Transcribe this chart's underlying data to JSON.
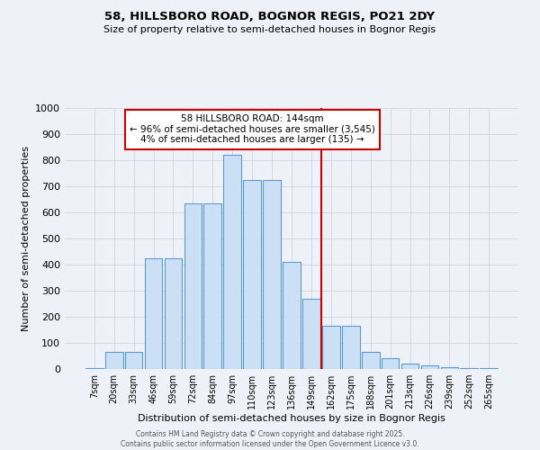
{
  "title1": "58, HILLSBORO ROAD, BOGNOR REGIS, PO21 2DY",
  "title2": "Size of property relative to semi-detached houses in Bognor Regis",
  "xlabel": "Distribution of semi-detached houses by size in Bognor Regis",
  "ylabel": "Number of semi-detached properties",
  "footer": "Contains HM Land Registry data © Crown copyright and database right 2025.\nContains public sector information licensed under the Open Government Licence v3.0.",
  "categories": [
    "7sqm",
    "20sqm",
    "33sqm",
    "46sqm",
    "59sqm",
    "72sqm",
    "84sqm",
    "97sqm",
    "110sqm",
    "123sqm",
    "136sqm",
    "149sqm",
    "162sqm",
    "175sqm",
    "188sqm",
    "201sqm",
    "213sqm",
    "226sqm",
    "239sqm",
    "252sqm",
    "265sqm"
  ],
  "values": [
    5,
    65,
    65,
    425,
    425,
    635,
    635,
    820,
    725,
    725,
    410,
    270,
    165,
    165,
    65,
    40,
    20,
    15,
    8,
    5,
    5
  ],
  "bar_color": "#cce0f5",
  "bar_edge_color": "#5b9bd5",
  "vline_x": 11.5,
  "vline_color": "#cc0000",
  "annotation_text": "58 HILLSBORO ROAD: 144sqm\n← 96% of semi-detached houses are smaller (3,545)\n4% of semi-detached houses are larger (135) →",
  "annotation_box_color": "#cc0000",
  "ylim": [
    0,
    1000
  ],
  "yticks": [
    0,
    100,
    200,
    300,
    400,
    500,
    600,
    700,
    800,
    900,
    1000
  ],
  "bg_color": "#eef2f8",
  "grid_color": "#c8cdd8"
}
